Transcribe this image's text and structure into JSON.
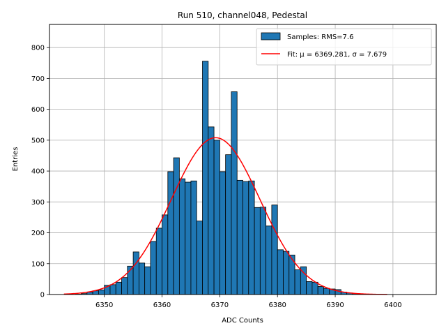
{
  "chart_data": {
    "type": "bar",
    "title": "Run 510, channel048, Pedestal",
    "xlabel": "ADC Counts",
    "ylabel": "Entries",
    "xlim": [
      6340.5,
      6407.5
    ],
    "ylim": [
      0,
      875
    ],
    "xticks": [
      6350,
      6360,
      6370,
      6380,
      6390,
      6400
    ],
    "yticks": [
      0,
      100,
      200,
      300,
      400,
      500,
      600,
      700,
      800
    ],
    "grid": true,
    "legend_position": "top-right",
    "histogram": {
      "name": "Samples: RMS=7.6",
      "color": "#1f77b4",
      "bin_width": 1,
      "bin_starts": [
        6345,
        6346,
        6347,
        6348,
        6349,
        6350,
        6351,
        6352,
        6353,
        6354,
        6355,
        6356,
        6357,
        6358,
        6359,
        6360,
        6361,
        6362,
        6363,
        6364,
        6365,
        6366,
        6367,
        6368,
        6369,
        6370,
        6371,
        6372,
        6373,
        6374,
        6375,
        6376,
        6377,
        6378,
        6379,
        6380,
        6381,
        6382,
        6383,
        6384,
        6385,
        6386,
        6387,
        6388,
        6389,
        6390,
        6391,
        6392,
        6393,
        6394,
        6395,
        6396
      ],
      "values": [
        1,
        3,
        8,
        12,
        15,
        30,
        32,
        40,
        55,
        92,
        138,
        102,
        90,
        172,
        215,
        258,
        398,
        443,
        375,
        364,
        368,
        238,
        756,
        543,
        500,
        398,
        453,
        657,
        370,
        366,
        368,
        282,
        283,
        222,
        290,
        145,
        140,
        128,
        80,
        90,
        42,
        40,
        26,
        20,
        18,
        16,
        8,
        5,
        3,
        2,
        1,
        1
      ]
    },
    "fit": {
      "name": "Fit: μ = 6369.281, σ = 7.679",
      "color": "#ff0000",
      "mu": 6369.281,
      "sigma": 7.679,
      "amplitude": 508,
      "x_range": [
        6343,
        6399
      ]
    }
  }
}
